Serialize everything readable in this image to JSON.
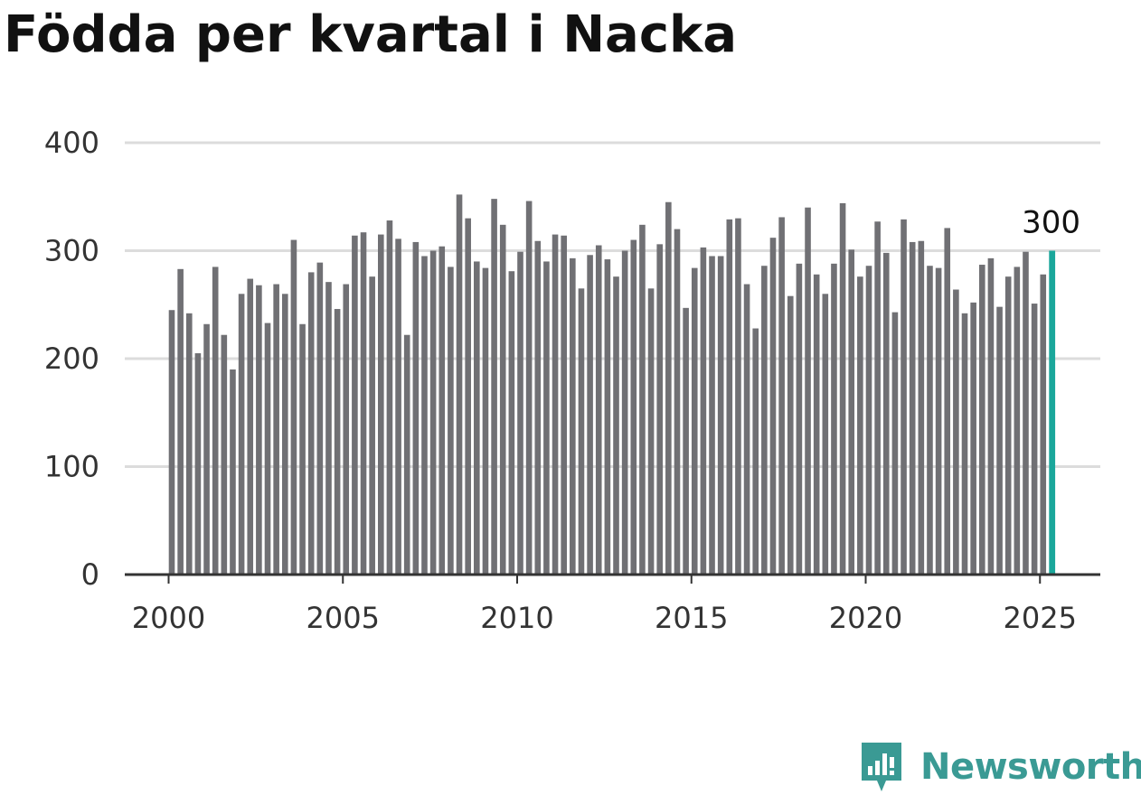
{
  "title": "Födda per kvartal i Nacka",
  "brand": {
    "name": "Newsworthy",
    "icon": "newsworthy-logo-icon",
    "color": "#3a9a94"
  },
  "colors": {
    "bar": "#707074",
    "highlight": "#1aa79b",
    "grid": "#dcdcdc",
    "axis": "#333333"
  },
  "chart_data": {
    "type": "bar",
    "title": "Födda per kvartal i Nacka",
    "xlabel": "",
    "ylabel": "",
    "ylim": [
      0,
      400
    ],
    "yticks": [
      0,
      100,
      200,
      300,
      400
    ],
    "xticks": [
      "2000",
      "2005",
      "2010",
      "2015",
      "2020",
      "2025"
    ],
    "xlim": [
      2000,
      2025.75
    ],
    "grid": true,
    "legend": "none",
    "highlight_last": true,
    "annotations": [
      {
        "label": "300",
        "target": "2025 Q2"
      }
    ],
    "categories": [
      "2000 Q1",
      "2000 Q2",
      "2000 Q3",
      "2000 Q4",
      "2001 Q1",
      "2001 Q2",
      "2001 Q3",
      "2001 Q4",
      "2002 Q1",
      "2002 Q2",
      "2002 Q3",
      "2002 Q4",
      "2003 Q1",
      "2003 Q2",
      "2003 Q3",
      "2003 Q4",
      "2004 Q1",
      "2004 Q2",
      "2004 Q3",
      "2004 Q4",
      "2005 Q1",
      "2005 Q2",
      "2005 Q3",
      "2005 Q4",
      "2006 Q1",
      "2006 Q2",
      "2006 Q3",
      "2006 Q4",
      "2007 Q1",
      "2007 Q2",
      "2007 Q3",
      "2007 Q4",
      "2008 Q1",
      "2008 Q2",
      "2008 Q3",
      "2008 Q4",
      "2009 Q1",
      "2009 Q2",
      "2009 Q3",
      "2009 Q4",
      "2010 Q1",
      "2010 Q2",
      "2010 Q3",
      "2010 Q4",
      "2011 Q1",
      "2011 Q2",
      "2011 Q3",
      "2011 Q4",
      "2012 Q1",
      "2012 Q2",
      "2012 Q3",
      "2012 Q4",
      "2013 Q1",
      "2013 Q2",
      "2013 Q3",
      "2013 Q4",
      "2014 Q1",
      "2014 Q2",
      "2014 Q3",
      "2014 Q4",
      "2015 Q1",
      "2015 Q2",
      "2015 Q3",
      "2015 Q4",
      "2016 Q1",
      "2016 Q2",
      "2016 Q3",
      "2016 Q4",
      "2017 Q1",
      "2017 Q2",
      "2017 Q3",
      "2017 Q4",
      "2018 Q1",
      "2018 Q2",
      "2018 Q3",
      "2018 Q4",
      "2019 Q1",
      "2019 Q2",
      "2019 Q3",
      "2019 Q4",
      "2020 Q1",
      "2020 Q2",
      "2020 Q3",
      "2020 Q4",
      "2021 Q1",
      "2021 Q2",
      "2021 Q3",
      "2021 Q4",
      "2022 Q1",
      "2022 Q2",
      "2022 Q3",
      "2022 Q4",
      "2023 Q1",
      "2023 Q2",
      "2023 Q3",
      "2023 Q4",
      "2024 Q1",
      "2024 Q2",
      "2024 Q3",
      "2024 Q4",
      "2025 Q1",
      "2025 Q2"
    ],
    "values": [
      245,
      283,
      242,
      205,
      232,
      285,
      222,
      190,
      260,
      274,
      268,
      233,
      269,
      260,
      310,
      232,
      280,
      289,
      271,
      246,
      269,
      314,
      317,
      276,
      315,
      328,
      311,
      222,
      308,
      295,
      300,
      304,
      285,
      352,
      330,
      290,
      284,
      348,
      324,
      281,
      299,
      346,
      309,
      290,
      315,
      314,
      293,
      265,
      296,
      305,
      292,
      276,
      300,
      310,
      324,
      265,
      306,
      345,
      320,
      247,
      284,
      303,
      295,
      295,
      329,
      330,
      269,
      228,
      286,
      312,
      331,
      258,
      288,
      340,
      278,
      260,
      288,
      344,
      301,
      276,
      286,
      327,
      298,
      243,
      329,
      308,
      309,
      286,
      284,
      321,
      264,
      242,
      252,
      287,
      293,
      248,
      276,
      285,
      299,
      251,
      278,
      300
    ]
  }
}
